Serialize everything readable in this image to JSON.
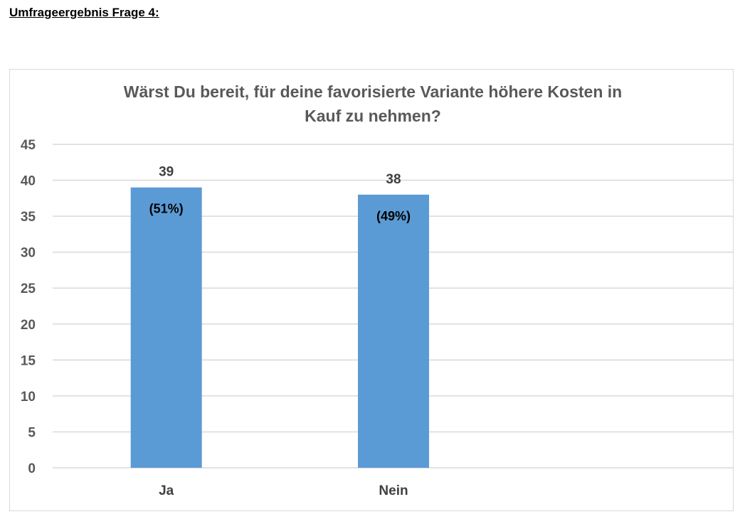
{
  "page": {
    "heading": "Umfrageergebnis Frage 4:"
  },
  "chart_data": {
    "type": "bar",
    "title_lines": [
      "Wärst Du bereit, für deine favorisierte Variante höhere Kosten in",
      "Kauf zu nehmen?"
    ],
    "categories": [
      "Ja",
      "Nein"
    ],
    "series": [
      {
        "values": [
          39,
          38
        ],
        "color": "#5b9bd5"
      }
    ],
    "data_labels": [
      "39",
      "38"
    ],
    "percent_labels": [
      "(51%)",
      "(49%)"
    ],
    "ylim": [
      0,
      45
    ],
    "y_ticks": [
      0,
      5,
      10,
      15,
      20,
      25,
      30,
      35,
      40,
      45
    ],
    "grid": true,
    "xlabel": "",
    "ylabel": ""
  }
}
